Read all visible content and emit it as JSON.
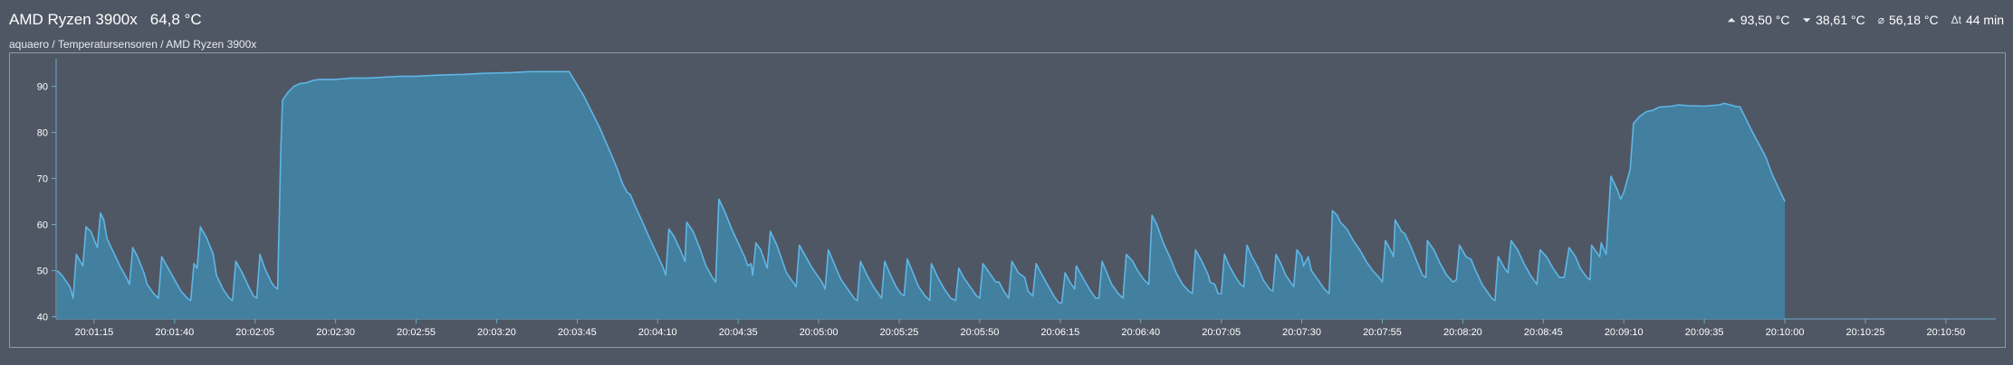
{
  "header": {
    "title": "AMD Ryzen 3900x",
    "current_value": "64,8 °C",
    "breadcrumb": "aquaero / Temperatursensoren / AMD Ryzen 3900x",
    "stats": [
      {
        "icon": "max-icon",
        "glyph": "⏶",
        "value": "93,50 °C"
      },
      {
        "icon": "min-icon",
        "glyph": "⏷",
        "value": "38,61 °C"
      },
      {
        "icon": "average-icon",
        "glyph": "⌀",
        "value": "56,18 °C"
      },
      {
        "icon": "duration-icon",
        "glyph": "Δt",
        "value": "44 min"
      }
    ]
  },
  "colors": {
    "background": "#4f5765",
    "line": "#5eb6e6",
    "fill": "#437f9e",
    "axis": "#6ea9c9"
  },
  "chart_data": {
    "type": "area",
    "y_ticks": [
      40,
      50,
      60,
      70,
      80,
      90
    ],
    "ylim": [
      39.5,
      96
    ],
    "x_ticks": [
      "20:01:15",
      "20:01:40",
      "20:02:05",
      "20:02:30",
      "20:02:55",
      "20:03:20",
      "20:03:45",
      "20:04:10",
      "20:04:35",
      "20:05:00",
      "20:05:25",
      "20:05:50",
      "20:06:15",
      "20:06:40",
      "20:07:05",
      "20:07:30",
      "20:07:55",
      "20:08:20",
      "20:08:45",
      "20:09:10",
      "20:09:35",
      "20:10:00",
      "20:10:25",
      "20:10:50"
    ],
    "x_tick_seconds": [
      75,
      100,
      125,
      150,
      175,
      200,
      225,
      250,
      275,
      300,
      325,
      350,
      375,
      400,
      425,
      450,
      475,
      500,
      525,
      550,
      575,
      600,
      625,
      650
    ],
    "x_range_seconds": [
      63.5,
      665.5
    ],
    "series": [
      {
        "points": [
          [
            63.5,
            50
          ],
          [
            65,
            49
          ],
          [
            67.5,
            46.5
          ],
          [
            68.5,
            44
          ],
          [
            69.5,
            53.5
          ],
          [
            71.5,
            51
          ],
          [
            72.5,
            59.5
          ],
          [
            74,
            58.5
          ],
          [
            76,
            55
          ],
          [
            77,
            62.5
          ],
          [
            78,
            61
          ],
          [
            79,
            57
          ],
          [
            81,
            54
          ],
          [
            83,
            51
          ],
          [
            85,
            48.5
          ],
          [
            86,
            47
          ],
          [
            87,
            55
          ],
          [
            88.5,
            53
          ],
          [
            90.5,
            49.5
          ],
          [
            91.5,
            47
          ],
          [
            93.5,
            45
          ],
          [
            95,
            44
          ],
          [
            96,
            53
          ],
          [
            98,
            50.5
          ],
          [
            100,
            48
          ],
          [
            102,
            45.5
          ],
          [
            104,
            44
          ],
          [
            105,
            43.5
          ],
          [
            106,
            51.5
          ],
          [
            107,
            50.5
          ],
          [
            108,
            59.5
          ],
          [
            110,
            57
          ],
          [
            112,
            53.5
          ],
          [
            113,
            49
          ],
          [
            115,
            46
          ],
          [
            117,
            44
          ],
          [
            118,
            43.5
          ],
          [
            119,
            52
          ],
          [
            121,
            49.5
          ],
          [
            123,
            46.5
          ],
          [
            124.5,
            44.5
          ],
          [
            125.5,
            44
          ],
          [
            126.5,
            53.5
          ],
          [
            128,
            50.5
          ],
          [
            130,
            47.5
          ],
          [
            131,
            46.5
          ],
          [
            132,
            46
          ],
          [
            133,
            77
          ],
          [
            133.5,
            87
          ],
          [
            135,
            88.5
          ],
          [
            137,
            90
          ],
          [
            139,
            90.6
          ],
          [
            141,
            90.8
          ],
          [
            143,
            91.3
          ],
          [
            145,
            91.5
          ],
          [
            150,
            91.5
          ],
          [
            155,
            91.8
          ],
          [
            160,
            91.8
          ],
          [
            165,
            92
          ],
          [
            170,
            92.2
          ],
          [
            175,
            92.2
          ],
          [
            180,
            92.4
          ],
          [
            185,
            92.5
          ],
          [
            190,
            92.6
          ],
          [
            195,
            92.8
          ],
          [
            200,
            92.9
          ],
          [
            205,
            93
          ],
          [
            210,
            93.2
          ],
          [
            215,
            93.2
          ],
          [
            220,
            93.2
          ],
          [
            222.5,
            93.2
          ],
          [
            227,
            88
          ],
          [
            232,
            81
          ],
          [
            236,
            74.5
          ],
          [
            237.5,
            72
          ],
          [
            239,
            69
          ],
          [
            240.5,
            67
          ],
          [
            241.5,
            66.5
          ],
          [
            243,
            64
          ],
          [
            245,
            61
          ],
          [
            247.5,
            57
          ],
          [
            249.5,
            54
          ],
          [
            251.5,
            51
          ],
          [
            252.5,
            49
          ],
          [
            253.5,
            59
          ],
          [
            255,
            57.5
          ],
          [
            257,
            54.5
          ],
          [
            258.5,
            52
          ],
          [
            259,
            60.5
          ],
          [
            261,
            58.5
          ],
          [
            263,
            55
          ],
          [
            265,
            51
          ],
          [
            267,
            48.5
          ],
          [
            268,
            47.5
          ],
          [
            269,
            65.5
          ],
          [
            271,
            62.5
          ],
          [
            273,
            59
          ],
          [
            275,
            56
          ],
          [
            277,
            53
          ],
          [
            278,
            51
          ],
          [
            279,
            51.5
          ],
          [
            279.5,
            49
          ],
          [
            280.5,
            56
          ],
          [
            282,
            54.5
          ],
          [
            284,
            50.5
          ],
          [
            285,
            58.5
          ],
          [
            287,
            55.5
          ],
          [
            289,
            51.5
          ],
          [
            290,
            49.5
          ],
          [
            292,
            47.5
          ],
          [
            293,
            46.5
          ],
          [
            294,
            55.5
          ],
          [
            296,
            53
          ],
          [
            298,
            50.5
          ],
          [
            300,
            48.5
          ],
          [
            301,
            47.5
          ],
          [
            302,
            46
          ],
          [
            303,
            54.5
          ],
          [
            304.5,
            52
          ],
          [
            306,
            49.5
          ],
          [
            307,
            48
          ],
          [
            309,
            46
          ],
          [
            311,
            44
          ],
          [
            312,
            43.5
          ],
          [
            313,
            52
          ],
          [
            315,
            49
          ],
          [
            317,
            46.5
          ],
          [
            318.5,
            45
          ],
          [
            319.5,
            44
          ],
          [
            320.5,
            52
          ],
          [
            322,
            49.5
          ],
          [
            324,
            46.5
          ],
          [
            325.5,
            45
          ],
          [
            326.5,
            44.5
          ],
          [
            327.5,
            52.5
          ],
          [
            329,
            50
          ],
          [
            331,
            46.5
          ],
          [
            333,
            44.5
          ],
          [
            334.5,
            43.5
          ],
          [
            335,
            51.5
          ],
          [
            337,
            48.5
          ],
          [
            339,
            46
          ],
          [
            341,
            44
          ],
          [
            342.5,
            43.5
          ],
          [
            343.5,
            50.5
          ],
          [
            345,
            48.5
          ],
          [
            347,
            46.5
          ],
          [
            349,
            44.5
          ],
          [
            350,
            44
          ],
          [
            351,
            51.5
          ],
          [
            353,
            49.5
          ],
          [
            355,
            47.5
          ],
          [
            356,
            47.5
          ],
          [
            357.5,
            45.5
          ],
          [
            359,
            44
          ],
          [
            360,
            52
          ],
          [
            362,
            49.5
          ],
          [
            364,
            48.5
          ],
          [
            365,
            45.5
          ],
          [
            366.5,
            44.5
          ],
          [
            367.5,
            51.5
          ],
          [
            369,
            49.5
          ],
          [
            371,
            47
          ],
          [
            373,
            44.5
          ],
          [
            374.5,
            43
          ],
          [
            375.5,
            43
          ],
          [
            376.5,
            49.5
          ],
          [
            378,
            47.5
          ],
          [
            379.5,
            46
          ],
          [
            380,
            51
          ],
          [
            382,
            48.5
          ],
          [
            384,
            46
          ],
          [
            386,
            44
          ],
          [
            387,
            44
          ],
          [
            388,
            52
          ],
          [
            389.5,
            49.5
          ],
          [
            391,
            47
          ],
          [
            393,
            45
          ],
          [
            394.5,
            44
          ],
          [
            395.5,
            53.5
          ],
          [
            397.5,
            52
          ],
          [
            399,
            50
          ],
          [
            401,
            48
          ],
          [
            402.5,
            47
          ],
          [
            403.5,
            62
          ],
          [
            405,
            60
          ],
          [
            407,
            56
          ],
          [
            409,
            53
          ],
          [
            411,
            49.5
          ],
          [
            413,
            47
          ],
          [
            415,
            45.5
          ],
          [
            416,
            45
          ],
          [
            417,
            54.5
          ],
          [
            419,
            52
          ],
          [
            421,
            49
          ],
          [
            421.5,
            47.5
          ],
          [
            423,
            47
          ],
          [
            424,
            45
          ],
          [
            425,
            45
          ],
          [
            426,
            53.5
          ],
          [
            427.5,
            51
          ],
          [
            429.5,
            48.5
          ],
          [
            431,
            47
          ],
          [
            432,
            46.5
          ],
          [
            433,
            55.5
          ],
          [
            434.5,
            53
          ],
          [
            436.5,
            50.5
          ],
          [
            438,
            48
          ],
          [
            440,
            46
          ],
          [
            441,
            45.5
          ],
          [
            442,
            53.5
          ],
          [
            443.5,
            51.5
          ],
          [
            445,
            49
          ],
          [
            446.5,
            47.5
          ],
          [
            447.5,
            46.5
          ],
          [
            448.5,
            54.5
          ],
          [
            450,
            53
          ],
          [
            450.5,
            51
          ],
          [
            452,
            53
          ],
          [
            453,
            50
          ],
          [
            455,
            48
          ],
          [
            457,
            46
          ],
          [
            458.5,
            45
          ],
          [
            459.5,
            63
          ],
          [
            461,
            62
          ],
          [
            462,
            60.5
          ],
          [
            464,
            59
          ],
          [
            466,
            56.5
          ],
          [
            468,
            54.5
          ],
          [
            470,
            52
          ],
          [
            472,
            50
          ],
          [
            474,
            48.5
          ],
          [
            475,
            47.5
          ],
          [
            476,
            56.5
          ],
          [
            477.5,
            54.5
          ],
          [
            478.5,
            53
          ],
          [
            479,
            61
          ],
          [
            481,
            58.5
          ],
          [
            482,
            58
          ],
          [
            484,
            55
          ],
          [
            486,
            51.5
          ],
          [
            487.5,
            49
          ],
          [
            488.5,
            48.5
          ],
          [
            489,
            56.5
          ],
          [
            491,
            54.5
          ],
          [
            493,
            51.5
          ],
          [
            495,
            49
          ],
          [
            497,
            47.5
          ],
          [
            498,
            48
          ],
          [
            499,
            55.5
          ],
          [
            501,
            53
          ],
          [
            502.5,
            52.5
          ],
          [
            504,
            50
          ],
          [
            506,
            47
          ],
          [
            508,
            45
          ],
          [
            509,
            44
          ],
          [
            510,
            43.5
          ],
          [
            511,
            53
          ],
          [
            513,
            50.5
          ],
          [
            514,
            49.5
          ],
          [
            515,
            56.5
          ],
          [
            517,
            54.5
          ],
          [
            519,
            51.5
          ],
          [
            521,
            49
          ],
          [
            523,
            47
          ],
          [
            524,
            54.5
          ],
          [
            526,
            53
          ],
          [
            528,
            50.5
          ],
          [
            530,
            48.5
          ],
          [
            531.5,
            48.5
          ],
          [
            533,
            55
          ],
          [
            535,
            53
          ],
          [
            536.5,
            50.5
          ],
          [
            538.5,
            48.5
          ],
          [
            539.5,
            48
          ],
          [
            540,
            55.5
          ],
          [
            541.5,
            54
          ],
          [
            542.5,
            53
          ],
          [
            543,
            56
          ],
          [
            544.5,
            53.5
          ],
          [
            546,
            70.5
          ],
          [
            548,
            67.5
          ],
          [
            549,
            65.5
          ],
          [
            550,
            67
          ],
          [
            552,
            72
          ],
          [
            553,
            82
          ],
          [
            555,
            83.5
          ],
          [
            557,
            84.5
          ],
          [
            559,
            84.8
          ],
          [
            561,
            85.5
          ],
          [
            565,
            85.7
          ],
          [
            567,
            86
          ],
          [
            570,
            85.8
          ],
          [
            575,
            85.7
          ],
          [
            580,
            86
          ],
          [
            581,
            86.3
          ],
          [
            583,
            86
          ],
          [
            585,
            85.6
          ],
          [
            586,
            85.6
          ],
          [
            590,
            80
          ],
          [
            594,
            74.8
          ],
          [
            596,
            71
          ],
          [
            598,
            68
          ],
          [
            600,
            65
          ]
        ]
      }
    ]
  }
}
